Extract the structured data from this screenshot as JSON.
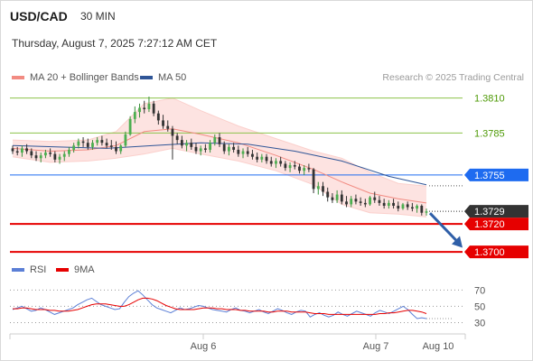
{
  "header": {
    "symbol": "USD/CAD",
    "timeframe": "30 MIN",
    "timestamp": "Thursday, August 7, 2025 7:27:12 AM CET"
  },
  "legend": {
    "items": [
      {
        "label": "MA 20 + Bollinger Bands",
        "color": "#f28b82"
      },
      {
        "label": "MA 50",
        "color": "#2f5597"
      }
    ],
    "credit": "Research © 2025 Trading Central"
  },
  "rsi_legend": {
    "items": [
      {
        "label": "RSI",
        "color": "#5b7fd6"
      },
      {
        "label": "9MA",
        "color": "#e60000"
      }
    ]
  },
  "chart_data": [
    {
      "type": "line",
      "title": "USD/CAD 30 MIN",
      "subtitle": "Thursday, August 7, 2025 7:27:12 AM CET",
      "x_tick_labels": [
        "Aug 6",
        "Aug 7",
        "Aug 10"
      ],
      "ylim": [
        1.3693,
        1.3822
      ],
      "price_candles": [
        [
          1.3774,
          1.3776,
          1.377,
          1.3772
        ],
        [
          1.3772,
          1.3775,
          1.3769,
          1.3771
        ],
        [
          1.3771,
          1.3776,
          1.3768,
          1.3774
        ],
        [
          1.3774,
          1.3777,
          1.377,
          1.3772
        ],
        [
          1.3772,
          1.3774,
          1.3767,
          1.3769
        ],
        [
          1.3769,
          1.3772,
          1.3765,
          1.3767
        ],
        [
          1.3767,
          1.3771,
          1.3764,
          1.3769
        ],
        [
          1.3769,
          1.3773,
          1.3767,
          1.3771
        ],
        [
          1.3771,
          1.3774,
          1.3768,
          1.377
        ],
        [
          1.377,
          1.3772,
          1.3764,
          1.3766
        ],
        [
          1.3766,
          1.377,
          1.3763,
          1.3768
        ],
        [
          1.3768,
          1.3772,
          1.3765,
          1.377
        ],
        [
          1.377,
          1.3775,
          1.3768,
          1.3773
        ],
        [
          1.3773,
          1.3778,
          1.3771,
          1.3776
        ],
        [
          1.3776,
          1.3781,
          1.3774,
          1.3779
        ],
        [
          1.3779,
          1.3782,
          1.3775,
          1.3778
        ],
        [
          1.3778,
          1.3781,
          1.3773,
          1.3775
        ],
        [
          1.3775,
          1.378,
          1.3773,
          1.3778
        ],
        [
          1.3778,
          1.3782,
          1.3776,
          1.378
        ],
        [
          1.378,
          1.3783,
          1.3776,
          1.3778
        ],
        [
          1.3778,
          1.3781,
          1.3774,
          1.3776
        ],
        [
          1.3776,
          1.378,
          1.3773,
          1.3775
        ],
        [
          1.3775,
          1.3779,
          1.377,
          1.3772
        ],
        [
          1.3772,
          1.3777,
          1.377,
          1.3776
        ],
        [
          1.3776,
          1.3786,
          1.3775,
          1.3784
        ],
        [
          1.3784,
          1.3797,
          1.3783,
          1.3795
        ],
        [
          1.3795,
          1.3804,
          1.3792,
          1.38
        ],
        [
          1.38,
          1.3806,
          1.3796,
          1.3803
        ],
        [
          1.3803,
          1.3808,
          1.3799,
          1.3802
        ],
        [
          1.3802,
          1.3811,
          1.38,
          1.3806
        ],
        [
          1.3806,
          1.3808,
          1.3797,
          1.3799
        ],
        [
          1.3799,
          1.3801,
          1.3791,
          1.3794
        ],
        [
          1.3794,
          1.3798,
          1.3788,
          1.379
        ],
        [
          1.379,
          1.3794,
          1.3786,
          1.3788
        ],
        [
          1.3788,
          1.379,
          1.3766,
          1.3783
        ],
        [
          1.3783,
          1.3785,
          1.3777,
          1.378
        ],
        [
          1.378,
          1.3783,
          1.3774,
          1.3776
        ],
        [
          1.3776,
          1.378,
          1.3772,
          1.3778
        ],
        [
          1.3778,
          1.3781,
          1.3773,
          1.3775
        ],
        [
          1.3775,
          1.3778,
          1.377,
          1.3772
        ],
        [
          1.3772,
          1.3776,
          1.3769,
          1.3774
        ],
        [
          1.3774,
          1.3777,
          1.3771,
          1.3773
        ],
        [
          1.3773,
          1.378,
          1.3771,
          1.3778
        ],
        [
          1.3778,
          1.3784,
          1.3776,
          1.3782
        ],
        [
          1.3782,
          1.3785,
          1.3775,
          1.3777
        ],
        [
          1.3777,
          1.3779,
          1.377,
          1.3772
        ],
        [
          1.3772,
          1.3777,
          1.3769,
          1.3775
        ],
        [
          1.3775,
          1.3778,
          1.3771,
          1.3773
        ],
        [
          1.3773,
          1.3776,
          1.3768,
          1.377
        ],
        [
          1.377,
          1.3774,
          1.3767,
          1.3772
        ],
        [
          1.3772,
          1.3775,
          1.3768,
          1.377
        ],
        [
          1.377,
          1.3773,
          1.3766,
          1.3768
        ],
        [
          1.3768,
          1.3771,
          1.3764,
          1.3766
        ],
        [
          1.3766,
          1.377,
          1.3764,
          1.3768
        ],
        [
          1.3768,
          1.377,
          1.3763,
          1.3765
        ],
        [
          1.3765,
          1.3768,
          1.3761,
          1.3763
        ],
        [
          1.3763,
          1.3767,
          1.376,
          1.3765
        ],
        [
          1.3765,
          1.3768,
          1.3761,
          1.3763
        ],
        [
          1.3763,
          1.3765,
          1.3758,
          1.376
        ],
        [
          1.376,
          1.3764,
          1.3757,
          1.3762
        ],
        [
          1.3762,
          1.3765,
          1.3759,
          1.3761
        ],
        [
          1.3761,
          1.3763,
          1.3756,
          1.3758
        ],
        [
          1.3758,
          1.3762,
          1.3755,
          1.376
        ],
        [
          1.376,
          1.3763,
          1.3757,
          1.3759
        ],
        [
          1.3759,
          1.376,
          1.3742,
          1.3745
        ],
        [
          1.3745,
          1.375,
          1.3741,
          1.3747
        ],
        [
          1.3747,
          1.375,
          1.374,
          1.3743
        ],
        [
          1.3743,
          1.3746,
          1.3736,
          1.3739
        ],
        [
          1.3739,
          1.3742,
          1.3735,
          1.3737
        ],
        [
          1.3737,
          1.3744,
          1.3735,
          1.3741
        ],
        [
          1.3741,
          1.3744,
          1.3734,
          1.3736
        ],
        [
          1.3736,
          1.374,
          1.3732,
          1.3734
        ],
        [
          1.3734,
          1.374,
          1.3732,
          1.3738
        ],
        [
          1.3738,
          1.3741,
          1.3734,
          1.3736
        ],
        [
          1.3736,
          1.3739,
          1.3733,
          1.3735
        ],
        [
          1.3735,
          1.3738,
          1.3732,
          1.3734
        ],
        [
          1.3734,
          1.374,
          1.3733,
          1.3739
        ],
        [
          1.3739,
          1.3743,
          1.3735,
          1.3737
        ],
        [
          1.3737,
          1.374,
          1.3733,
          1.3735
        ],
        [
          1.3735,
          1.3738,
          1.3731,
          1.3733
        ],
        [
          1.3733,
          1.3737,
          1.3731,
          1.3735
        ],
        [
          1.3735,
          1.3738,
          1.3731,
          1.3733
        ],
        [
          1.3733,
          1.3736,
          1.3729,
          1.3731
        ],
        [
          1.3731,
          1.3735,
          1.373,
          1.3734
        ],
        [
          1.3734,
          1.3736,
          1.373,
          1.3732
        ],
        [
          1.3732,
          1.3735,
          1.3729,
          1.3731
        ],
        [
          1.3731,
          1.3734,
          1.3728,
          1.3733
        ],
        [
          1.3733,
          1.3734,
          1.3726,
          1.3728
        ],
        [
          1.3728,
          1.3731,
          1.3726,
          1.3729
        ]
      ],
      "ma50": [
        [
          0,
          1.3776
        ],
        [
          10,
          1.3775
        ],
        [
          20,
          1.3774
        ],
        [
          30,
          1.3776
        ],
        [
          40,
          1.3778
        ],
        [
          50,
          1.3777
        ],
        [
          60,
          1.3772
        ],
        [
          70,
          1.3765
        ],
        [
          80,
          1.3754
        ],
        [
          88,
          1.3748
        ]
      ],
      "bollinger": {
        "middle": [
          [
            0,
            1.3774
          ],
          [
            8,
            1.3772
          ],
          [
            16,
            1.3773
          ],
          [
            22,
            1.3776
          ],
          [
            28,
            1.3786
          ],
          [
            34,
            1.3788
          ],
          [
            40,
            1.3784
          ],
          [
            48,
            1.3778
          ],
          [
            56,
            1.3769
          ],
          [
            64,
            1.3759
          ],
          [
            70,
            1.375
          ],
          [
            76,
            1.3742
          ],
          [
            82,
            1.3738
          ],
          [
            88,
            1.3735
          ]
        ],
        "upper": [
          [
            0,
            1.378
          ],
          [
            8,
            1.3779
          ],
          [
            16,
            1.378
          ],
          [
            22,
            1.3786
          ],
          [
            28,
            1.3806
          ],
          [
            34,
            1.381
          ],
          [
            40,
            1.3801
          ],
          [
            48,
            1.379
          ],
          [
            56,
            1.3781
          ],
          [
            64,
            1.3772
          ],
          [
            70,
            1.3767
          ],
          [
            76,
            1.3757
          ],
          [
            82,
            1.3749
          ],
          [
            88,
            1.3747
          ]
        ],
        "lower": [
          [
            0,
            1.3768
          ],
          [
            8,
            1.3764
          ],
          [
            16,
            1.3765
          ],
          [
            22,
            1.3767
          ],
          [
            28,
            1.377
          ],
          [
            34,
            1.3774
          ],
          [
            40,
            1.377
          ],
          [
            48,
            1.3765
          ],
          [
            56,
            1.3758
          ],
          [
            64,
            1.3748
          ],
          [
            70,
            1.3734
          ],
          [
            76,
            1.3728
          ],
          [
            82,
            1.3727
          ],
          [
            88,
            1.3725
          ]
        ]
      },
      "resistance_levels": [
        {
          "label": "1.3810",
          "value": 1.381,
          "color": "#8bc34a",
          "text_color": "#4e9a06",
          "style": "text"
        },
        {
          "label": "1.3785",
          "value": 1.3785,
          "color": "#8bc34a",
          "text_color": "#4e9a06",
          "style": "text"
        },
        {
          "label": "1.3755",
          "value": 1.3755,
          "color": "#1e6bf0",
          "text_color": "#ffffff",
          "style": "tag"
        }
      ],
      "current_price": {
        "label": "1.3729",
        "value": 1.3729,
        "color": "#333333"
      },
      "support_levels": [
        {
          "label": "1.3720",
          "value": 1.372,
          "color": "#e60000"
        },
        {
          "label": "1.3700",
          "value": 1.37,
          "color": "#e60000"
        }
      ],
      "forecast_arrow": {
        "from_value": 1.3729,
        "to_value": 1.3703,
        "color": "#2f5fa8"
      }
    },
    {
      "type": "line",
      "title": "RSI",
      "ylim": [
        25,
        77
      ],
      "y_tick_labels": [
        "70",
        "50",
        "30"
      ],
      "y_ticks": [
        70,
        50,
        30
      ],
      "series": [
        {
          "name": "RSI",
          "color": "#5b7fd6",
          "values": [
            46,
            48,
            50,
            47,
            44,
            45,
            48,
            46,
            43,
            40,
            42,
            44,
            46,
            48,
            52,
            55,
            58,
            60,
            56,
            52,
            50,
            48,
            46,
            47,
            55,
            62,
            66,
            69,
            64,
            58,
            52,
            48,
            46,
            44,
            42,
            45,
            48,
            46,
            47,
            49,
            51,
            50,
            48,
            46,
            45,
            44,
            43,
            46,
            48,
            45,
            44,
            42,
            44,
            46,
            43,
            41,
            44,
            47,
            45,
            42,
            40,
            43,
            45,
            44,
            37,
            40,
            42,
            39,
            37,
            39,
            43,
            40,
            38,
            41,
            44,
            42,
            40,
            38,
            42,
            45,
            43,
            41,
            44,
            47,
            50,
            46,
            40,
            35,
            36,
            35
          ]
        },
        {
          "name": "9MA",
          "color": "#e60000",
          "values": [
            47,
            47,
            48,
            48,
            47,
            46,
            46,
            46,
            45,
            45,
            44,
            44,
            44,
            45,
            46,
            48,
            50,
            52,
            53,
            53,
            53,
            52,
            51,
            50,
            50,
            52,
            55,
            58,
            60,
            60,
            59,
            57,
            54,
            51,
            49,
            47,
            46,
            46,
            46,
            46,
            47,
            48,
            48,
            48,
            47,
            47,
            46,
            46,
            46,
            45,
            45,
            44,
            44,
            44,
            44,
            43,
            43,
            44,
            44,
            44,
            43,
            43,
            43,
            43,
            42,
            41,
            41,
            41,
            40,
            40,
            40,
            40,
            40,
            40,
            40,
            40,
            40,
            40,
            40,
            41,
            41,
            42,
            42,
            43,
            44,
            45,
            45,
            44,
            43,
            41
          ]
        }
      ]
    }
  ]
}
